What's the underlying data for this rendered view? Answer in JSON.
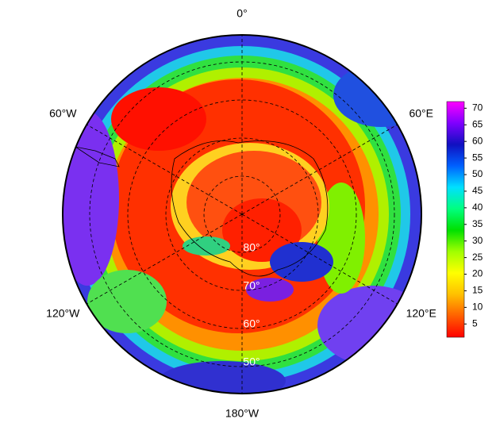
{
  "map": {
    "longitude_labels": [
      {
        "value": 0,
        "label": "0°"
      },
      {
        "value": 60,
        "label": "60°E"
      },
      {
        "value": 120,
        "label": "120°E"
      },
      {
        "value": 180,
        "label": "180°W"
      },
      {
        "value": -120,
        "label": "120°W"
      },
      {
        "value": -60,
        "label": "60°W"
      }
    ],
    "latitude_labels": [
      {
        "value": 80,
        "label": "80°"
      },
      {
        "value": 70,
        "label": "70°"
      },
      {
        "value": 60,
        "label": "60°"
      },
      {
        "value": 50,
        "label": "50°"
      }
    ],
    "colorbar": {
      "lim": [
        1,
        72
      ],
      "ticks": [
        5,
        10,
        15,
        20,
        25,
        30,
        35,
        40,
        45,
        50,
        55,
        60,
        65,
        70
      ],
      "colors": [
        "#ff0000",
        "#ff6000",
        "#ffc000",
        "#ffff00",
        "#a0ff00",
        "#00e000",
        "#00ff80",
        "#00e0ff",
        "#0060ff",
        "#1010c0",
        "#8000ff",
        "#ff00ff"
      ]
    }
  }
}
